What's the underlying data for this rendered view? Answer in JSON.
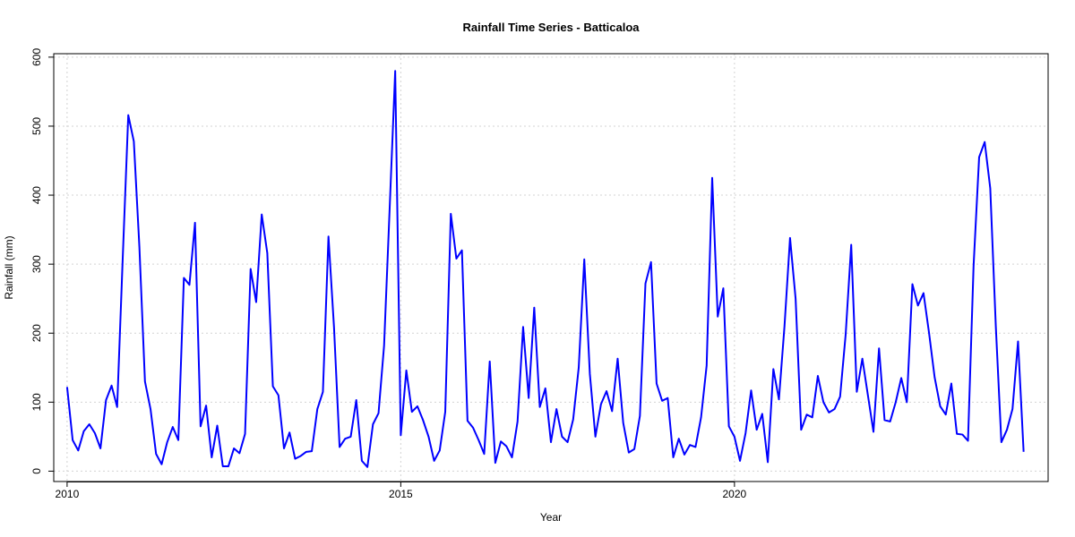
{
  "chart_data": {
    "type": "line",
    "title": "Rainfall Time Series - Batticaloa",
    "xlabel": "Year",
    "ylabel": "Rainfall (mm)",
    "xlim": [
      2009.8,
      2024.7
    ],
    "ylim": [
      -15,
      605
    ],
    "x_ticks": [
      2010,
      2015,
      2020
    ],
    "y_ticks": [
      0,
      100,
      200,
      300,
      400,
      500,
      600
    ],
    "grid": true,
    "colors": {
      "series": "#0000ff",
      "grid": "#d3d3d3"
    },
    "series": [
      {
        "x_start": 2010,
        "x_step": 0.08333,
        "values": [
          122,
          45,
          30,
          58,
          68,
          55,
          33,
          103,
          124,
          93,
          308,
          516,
          478,
          325,
          130,
          90,
          25,
          10,
          42,
          64,
          45,
          280,
          270,
          360,
          65,
          95,
          20,
          66,
          7,
          7,
          33,
          26,
          54,
          293,
          245,
          372,
          316,
          123,
          110,
          33,
          56,
          18,
          22,
          28,
          29,
          90,
          115,
          340,
          208,
          35,
          47,
          50,
          103,
          15,
          6,
          68,
          84,
          182,
          380,
          580,
          52,
          146,
          86,
          94,
          74,
          50,
          15,
          30,
          86,
          373,
          308,
          320,
          73,
          63,
          45,
          25,
          159,
          12,
          43,
          36,
          20,
          72,
          209,
          106,
          237,
          93,
          120,
          42,
          90,
          50,
          42,
          75,
          150,
          307,
          141,
          50,
          97,
          116,
          87,
          163,
          70,
          27,
          32,
          80,
          272,
          303,
          127,
          102,
          106,
          20,
          47,
          24,
          38,
          35,
          78,
          153,
          425,
          224,
          265,
          65,
          50,
          15,
          55,
          117,
          60,
          83,
          13,
          148,
          104,
          210,
          338,
          250,
          60,
          82,
          78,
          138,
          100,
          85,
          90,
          108,
          198,
          328,
          115,
          163,
          110,
          57,
          178,
          74,
          72,
          100,
          135,
          100,
          271,
          240,
          258,
          200,
          136,
          94,
          82,
          127,
          54,
          53,
          44,
          297,
          455,
          477,
          410,
          210,
          42,
          60,
          90,
          188,
          28
        ]
      }
    ]
  }
}
